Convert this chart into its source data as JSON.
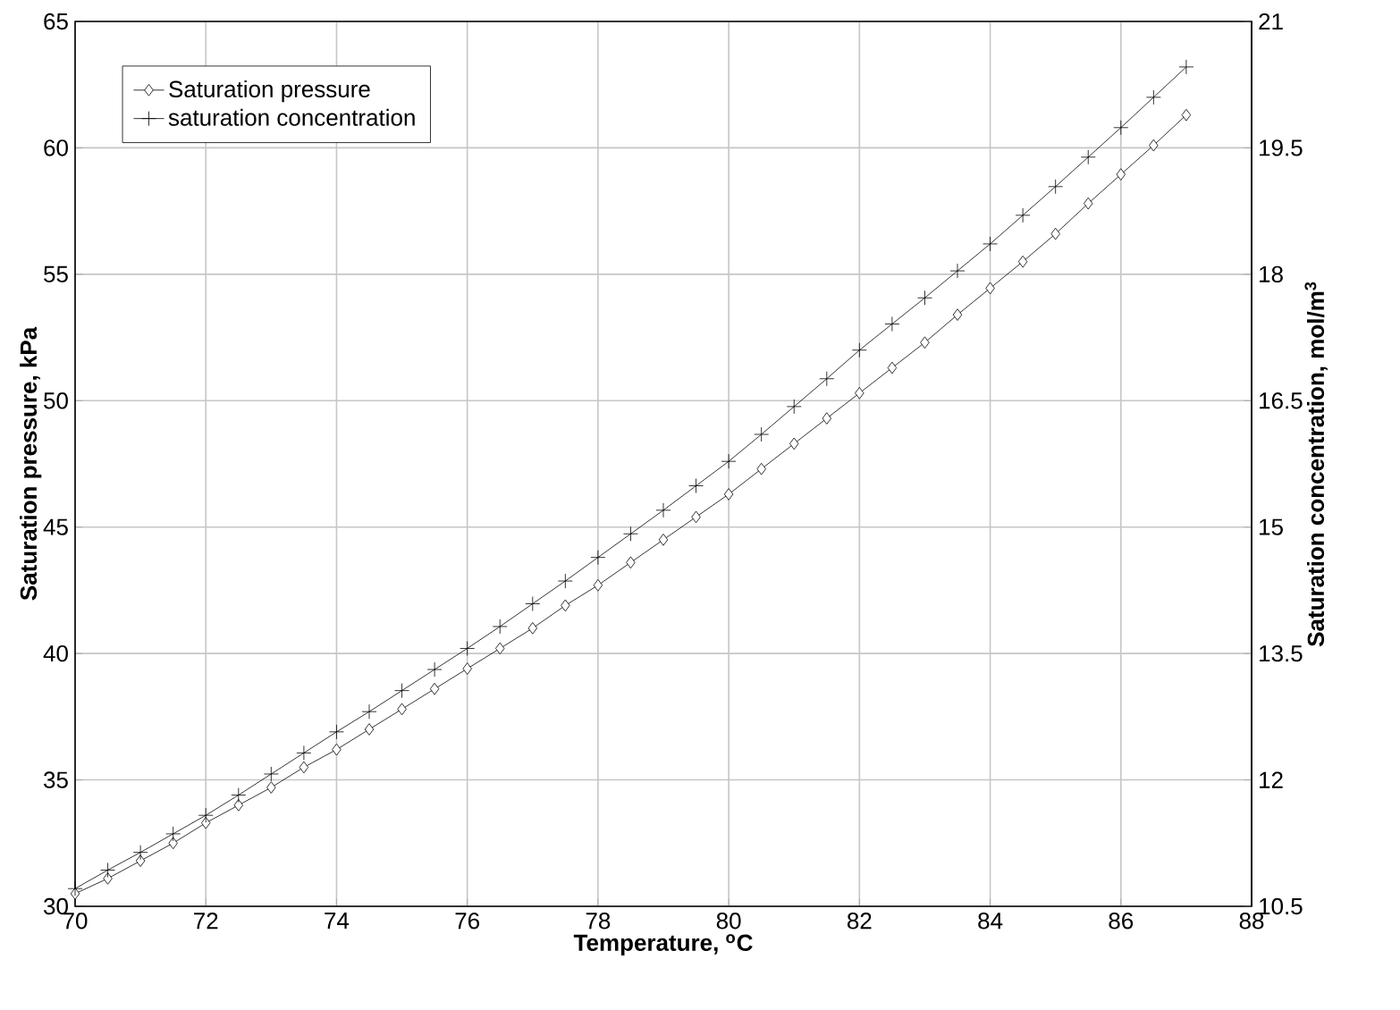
{
  "chart_data": {
    "type": "line",
    "xlabel": "Temperature, $^{o}$C",
    "ylabel": "Saturation pressure, kPa",
    "y2label": "Saturation concentration, mol/m$^{3}$",
    "x": [
      70,
      70.5,
      71,
      71.5,
      72,
      72.5,
      73,
      73.5,
      74,
      74.5,
      75,
      75.5,
      76,
      76.5,
      77,
      77.5,
      78,
      78.5,
      79,
      79.5,
      80,
      80.5,
      81,
      81.5,
      82,
      82.5,
      83,
      83.5,
      84,
      84.5,
      85,
      85.5,
      86,
      86.5,
      87
    ],
    "series": [
      {
        "name": "Saturation pressure",
        "color": "#000000",
        "marker": "diamond",
        "values": [
          30.5,
          31.1,
          31.8,
          32.5,
          33.3,
          34.0,
          34.7,
          35.5,
          36.2,
          37.0,
          37.8,
          38.6,
          39.4,
          40.2,
          41.0,
          41.9,
          42.7,
          43.6,
          44.5,
          45.4,
          46.3,
          47.3,
          48.3,
          49.3,
          50.3,
          51.3,
          52.3,
          53.4,
          54.45,
          55.5,
          56.6,
          57.8,
          58.95,
          60.1,
          61.3
        ]
      },
      {
        "name": "saturation concentration",
        "color": "#000000",
        "marker": "cross",
        "axis": "y2",
        "values": [
          10.71,
          10.93,
          11.14,
          11.36,
          11.58,
          11.82,
          12.07,
          12.32,
          12.57,
          12.81,
          13.06,
          13.31,
          13.56,
          13.82,
          14.09,
          14.36,
          14.64,
          14.92,
          15.2,
          15.49,
          15.78,
          16.1,
          16.43,
          16.76,
          17.1,
          17.41,
          17.72,
          18.04,
          18.36,
          18.7,
          19.04,
          19.39,
          19.74,
          20.1,
          20.46
        ]
      }
    ],
    "xlim": [
      70,
      88
    ],
    "xticks": [
      70,
      72,
      74,
      76,
      78,
      80,
      82,
      84,
      86,
      88
    ],
    "ylim": [
      30,
      65
    ],
    "yticks": [
      30,
      35,
      40,
      45,
      50,
      55,
      60,
      65
    ],
    "y2lim": [
      10.5,
      21
    ],
    "y2ticks": [
      10.5,
      12,
      13.5,
      15,
      16.5,
      18,
      19.5,
      21
    ],
    "grid": true,
    "legend": "top left",
    "line_style": "solid"
  }
}
